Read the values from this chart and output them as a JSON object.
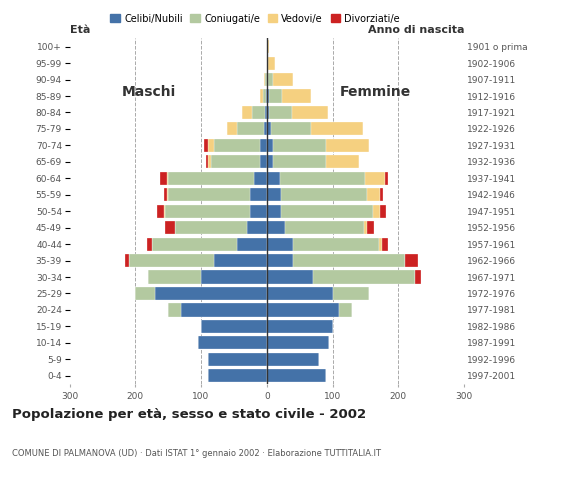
{
  "age_groups": [
    "0-4",
    "5-9",
    "10-14",
    "15-19",
    "20-24",
    "25-29",
    "30-34",
    "35-39",
    "40-44",
    "45-49",
    "50-54",
    "55-59",
    "60-64",
    "65-69",
    "70-74",
    "75-79",
    "80-84",
    "85-89",
    "90-94",
    "95-99",
    "100+"
  ],
  "birth_years": [
    "1997-2001",
    "1992-1996",
    "1987-1991",
    "1982-1986",
    "1977-1981",
    "1972-1976",
    "1967-1971",
    "1962-1966",
    "1957-1961",
    "1952-1956",
    "1947-1951",
    "1942-1946",
    "1937-1941",
    "1932-1936",
    "1927-1931",
    "1922-1926",
    "1917-1921",
    "1912-1916",
    "1907-1911",
    "1902-1906",
    "1901 o prima"
  ],
  "colors": {
    "celibe": "#4472a8",
    "coniugato": "#b3c9a0",
    "vedovo": "#f5d080",
    "divorziato": "#cc2222"
  },
  "males": {
    "celibe": [
      90,
      90,
      105,
      100,
      130,
      170,
      100,
      80,
      45,
      30,
      25,
      25,
      20,
      10,
      10,
      5,
      3,
      1,
      0,
      0,
      0
    ],
    "coniugato": [
      0,
      0,
      0,
      0,
      20,
      30,
      80,
      130,
      130,
      110,
      130,
      125,
      130,
      75,
      70,
      40,
      20,
      5,
      2,
      0,
      0
    ],
    "vedovo": [
      0,
      0,
      0,
      0,
      0,
      0,
      0,
      0,
      0,
      0,
      2,
      2,
      2,
      5,
      10,
      15,
      15,
      5,
      2,
      0,
      0
    ],
    "divorziato": [
      0,
      0,
      0,
      0,
      0,
      0,
      0,
      5,
      8,
      15,
      10,
      5,
      10,
      3,
      5,
      0,
      0,
      0,
      0,
      0,
      0
    ]
  },
  "females": {
    "celibe": [
      90,
      80,
      95,
      100,
      110,
      100,
      70,
      40,
      40,
      28,
      22,
      22,
      20,
      10,
      10,
      7,
      3,
      3,
      2,
      0,
      0
    ],
    "coniugato": [
      0,
      0,
      0,
      0,
      20,
      55,
      155,
      170,
      130,
      120,
      140,
      130,
      130,
      80,
      80,
      60,
      35,
      20,
      8,
      2,
      0
    ],
    "vedovo": [
      0,
      0,
      0,
      0,
      0,
      0,
      0,
      0,
      5,
      5,
      10,
      20,
      30,
      50,
      65,
      80,
      55,
      45,
      30,
      10,
      3
    ],
    "divorziato": [
      0,
      0,
      0,
      0,
      0,
      0,
      10,
      20,
      10,
      10,
      10,
      5,
      5,
      0,
      0,
      0,
      0,
      0,
      0,
      0,
      0
    ]
  },
  "title": "Popolazione per età, sesso e stato civile - 2002",
  "subtitle": "COMUNE DI PALMANOVA (UD) · Dati ISTAT 1° gennaio 2002 · Elaborazione TUTTITALIA.IT",
  "label_eta": "Età",
  "label_anno": "Anno di nascita",
  "label_maschi": "Maschi",
  "label_femmine": "Femmine",
  "legend_labels": [
    "Celibi/Nubili",
    "Coniugati/e",
    "Vedovi/e",
    "Divorziati/e"
  ],
  "xlim": 300,
  "background": "#ffffff",
  "grid_color": "#aaaaaa"
}
